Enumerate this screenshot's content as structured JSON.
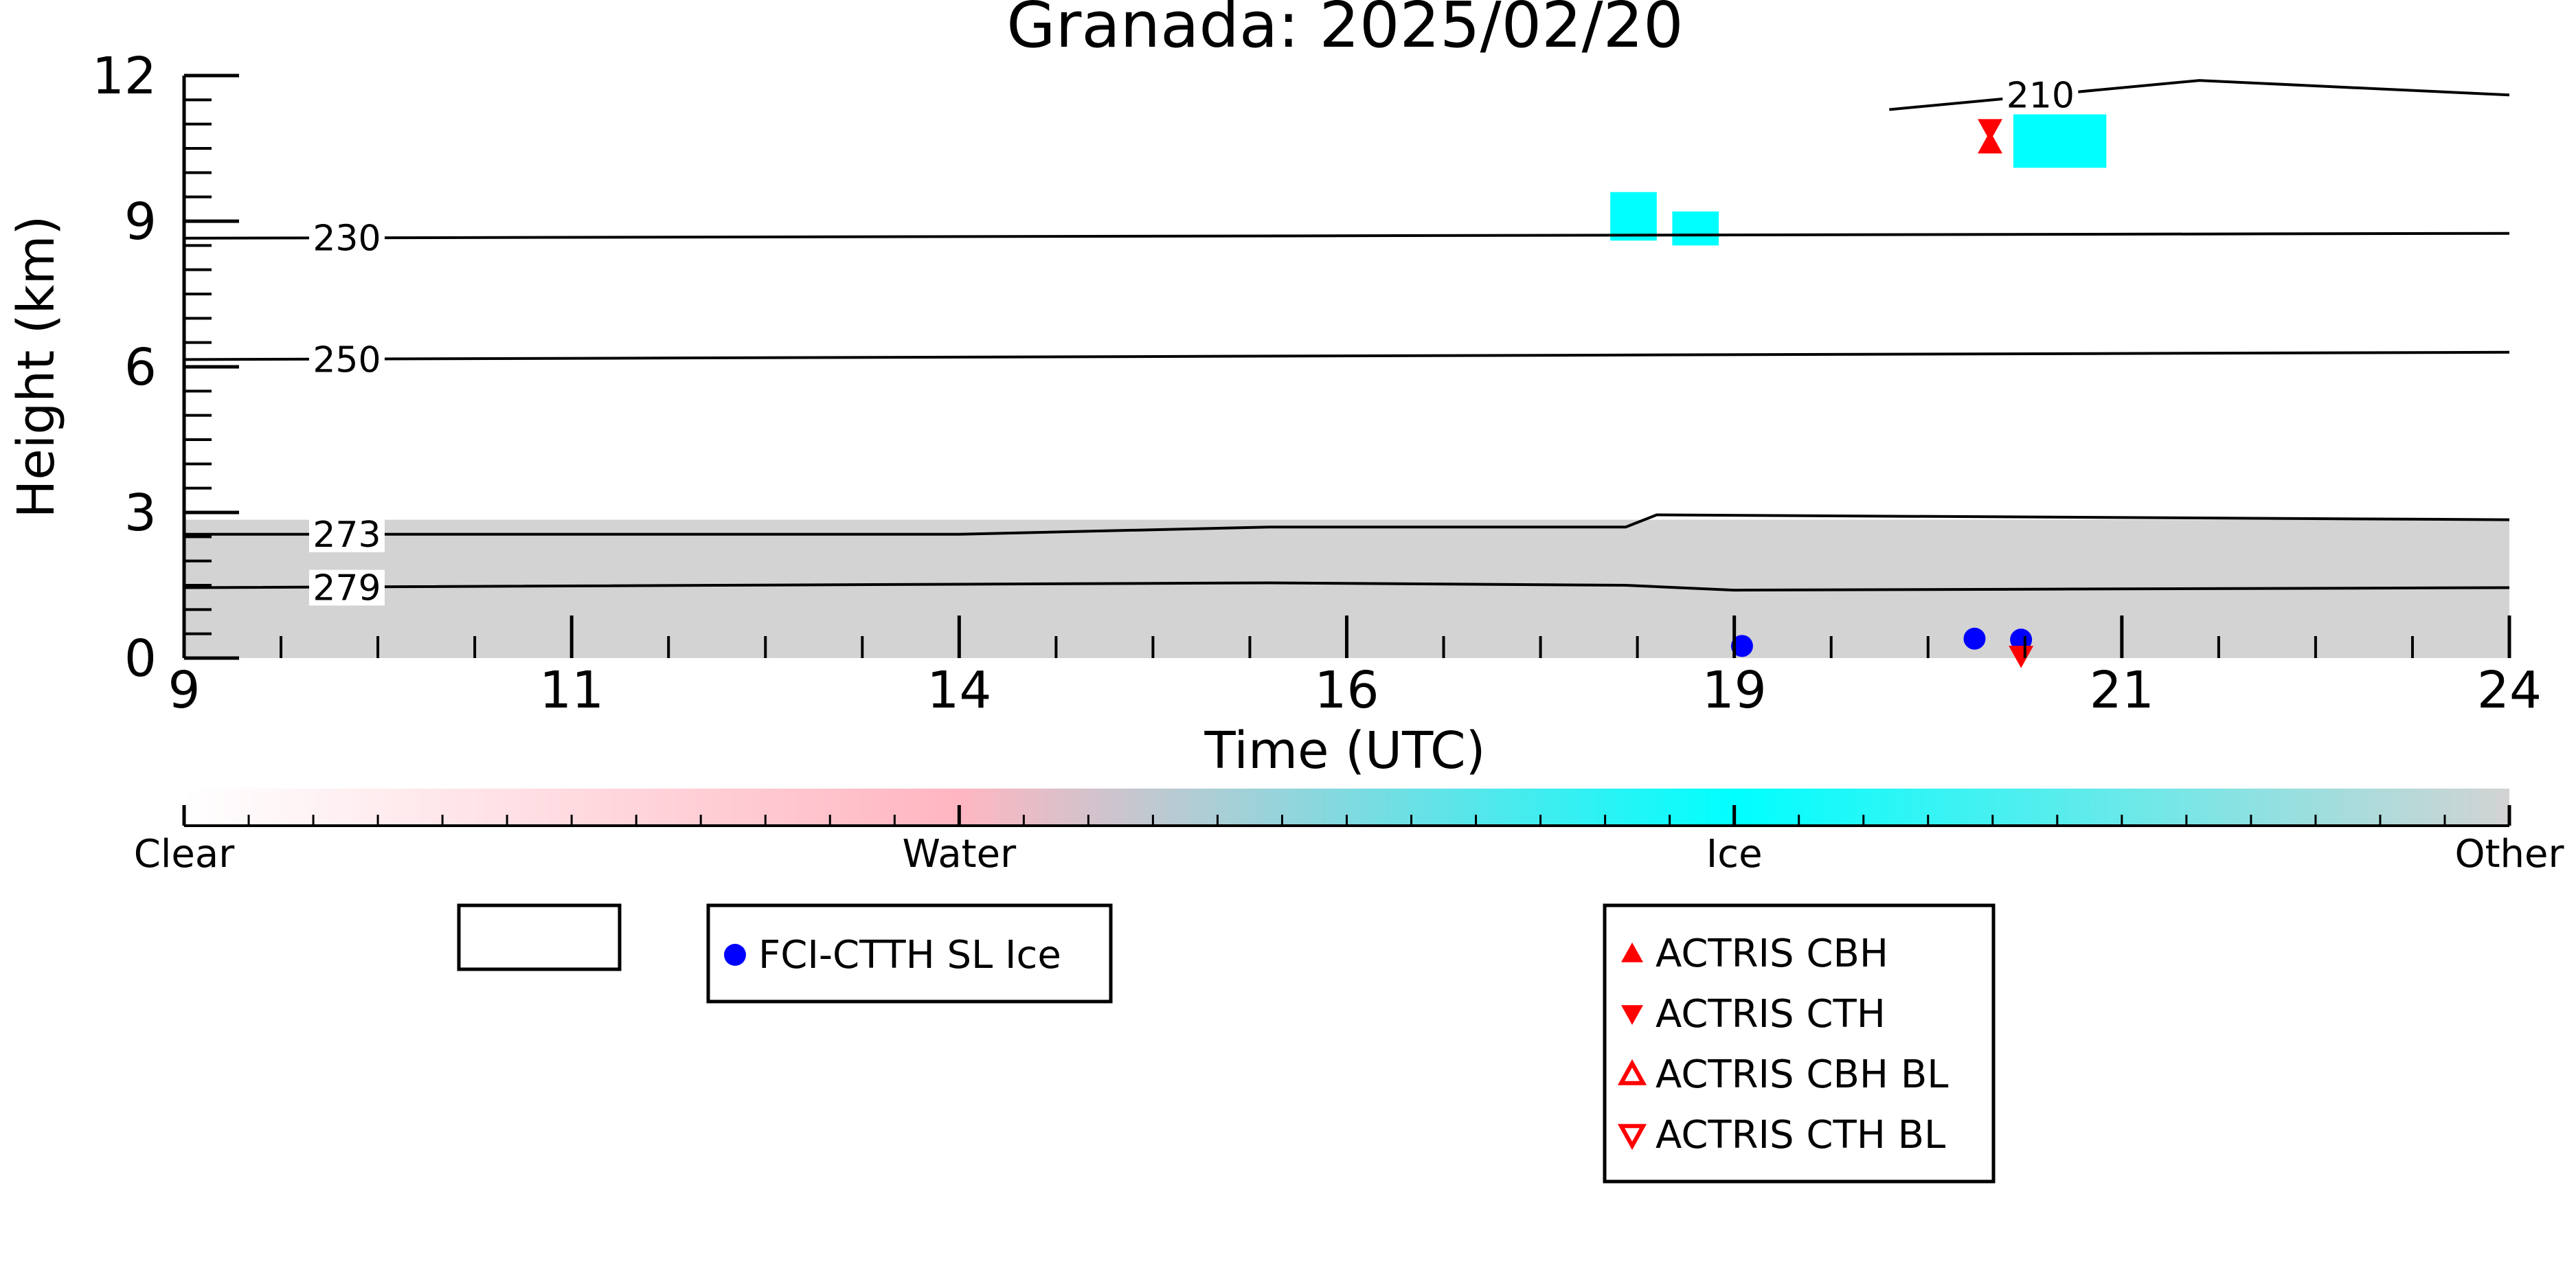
{
  "chart_data": {
    "type": "heatmap",
    "title": "Granada: 2025/02/20",
    "xlabel": "Time (UTC)",
    "ylabel": "Height (km)",
    "x_ticks": [
      "9",
      "11",
      "14",
      "16",
      "19",
      "21",
      "24"
    ],
    "y_ticks": [
      "0",
      "3",
      "6",
      "9",
      "12"
    ],
    "ylim": [
      0,
      12
    ],
    "grid": false,
    "colorbar": {
      "labels": [
        "Clear",
        "Water",
        "Ice",
        "Other"
      ],
      "colors": [
        "#ffffff",
        "#ffb6c1",
        "#00ffff",
        "#d3d3d3"
      ]
    },
    "category_colors": {
      "water": "#ffb6c1",
      "ice": "#00ffff",
      "other": "#d3d3d3",
      "contour": "#000000",
      "fci": "#0000ff",
      "actris": "#ff0000"
    },
    "contours": [
      {
        "label": "210",
        "points": [
          [
            20.0,
            11.3
          ],
          [
            22.0,
            11.9
          ],
          [
            24.0,
            11.6
          ]
        ]
      },
      {
        "label": "230",
        "points": [
          [
            9.0,
            8.65
          ],
          [
            24.0,
            8.75
          ]
        ]
      },
      {
        "label": "250",
        "points": [
          [
            9.0,
            6.15
          ],
          [
            24.0,
            6.3
          ]
        ]
      },
      {
        "label": "273",
        "points": [
          [
            9.0,
            2.55
          ],
          [
            14.0,
            2.55
          ],
          [
            16.0,
            2.7
          ],
          [
            18.3,
            2.7
          ],
          [
            18.5,
            2.95
          ],
          [
            24.0,
            2.85
          ]
        ]
      },
      {
        "label": "279",
        "points": [
          [
            9.0,
            1.45
          ],
          [
            16.0,
            1.55
          ],
          [
            18.3,
            1.5
          ],
          [
            19.0,
            1.4
          ],
          [
            24.0,
            1.45
          ]
        ]
      }
    ],
    "regions": [
      {
        "category": "other",
        "x": [
          9.0,
          24.0
        ],
        "y": [
          0.0,
          2.85
        ]
      },
      {
        "category": "ice",
        "x": [
          20.8,
          21.4
        ],
        "y": [
          10.1,
          11.2
        ]
      },
      {
        "category": "ice",
        "x": [
          18.2,
          18.5
        ],
        "y": [
          8.6,
          9.6
        ]
      },
      {
        "category": "ice",
        "x": [
          18.6,
          18.9
        ],
        "y": [
          8.5,
          9.2
        ]
      }
    ],
    "series": [
      {
        "name": "FCI-CTTH SL Ice",
        "marker": "circle",
        "x": [
          19.05,
          20.55,
          20.85
        ],
        "y": [
          0.25,
          0.4,
          0.38
        ]
      },
      {
        "name": "ACTRIS CBH",
        "marker": "triangle-up",
        "x": [
          20.65
        ],
        "y": [
          10.6
        ]
      },
      {
        "name": "ACTRIS CTH",
        "marker": "triangle-down",
        "x": [
          20.65,
          20.85
        ],
        "y": [
          10.9,
          0.05
        ]
      },
      {
        "name": "ACTRIS CBH BL",
        "marker": "triangle-up-open",
        "x": [],
        "y": []
      },
      {
        "name": "ACTRIS CTH BL",
        "marker": "triangle-down-open",
        "x": [],
        "y": []
      }
    ],
    "legend": {
      "box1": [
        "FCI-CTTH SL Ice"
      ],
      "box2": [
        "ACTRIS CBH",
        "ACTRIS CTH",
        "ACTRIS CBH BL",
        "ACTRIS CTH BL"
      ]
    }
  }
}
